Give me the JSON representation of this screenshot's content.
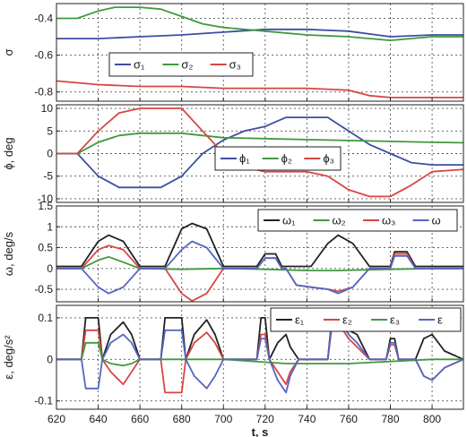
{
  "chart_data": [
    {
      "type": "line",
      "ylabel": "σ",
      "ylim": [
        -0.85,
        -0.32
      ],
      "yticks": [
        "-0.4",
        "-0.6",
        "-0.8"
      ],
      "ytick_values": [
        -0.4,
        -0.6,
        -0.8
      ],
      "legend": {
        "placement": "center-left"
      },
      "series": [
        {
          "name": "σ₁",
          "color": "#3b4fa0",
          "x": [
            620,
            640,
            660,
            680,
            700,
            720,
            740,
            760,
            780,
            800,
            815
          ],
          "y": [
            -0.51,
            -0.51,
            -0.5,
            -0.49,
            -0.475,
            -0.46,
            -0.46,
            -0.47,
            -0.5,
            -0.49,
            -0.49
          ]
        },
        {
          "name": "σ₂",
          "color": "#3e9a3e",
          "x": [
            620,
            630,
            640,
            648,
            660,
            670,
            680,
            690,
            700,
            720,
            740,
            760,
            780,
            800,
            815
          ],
          "y": [
            -0.4,
            -0.4,
            -0.36,
            -0.34,
            -0.34,
            -0.35,
            -0.39,
            -0.43,
            -0.45,
            -0.47,
            -0.49,
            -0.5,
            -0.52,
            -0.5,
            -0.5
          ]
        },
        {
          "name": "σ₃",
          "color": "#d94545",
          "x": [
            620,
            640,
            660,
            680,
            700,
            720,
            740,
            760,
            770,
            780,
            800,
            815
          ],
          "y": [
            -0.74,
            -0.76,
            -0.77,
            -0.77,
            -0.78,
            -0.78,
            -0.78,
            -0.79,
            -0.82,
            -0.83,
            -0.83,
            -0.83
          ]
        }
      ]
    },
    {
      "type": "line",
      "ylabel": "ϕ, deg",
      "ylim": [
        -10.8,
        10.8
      ],
      "yticks": [
        "10",
        "5",
        "0",
        "-5",
        "-10"
      ],
      "ytick_values": [
        10,
        5,
        0,
        -5,
        -10
      ],
      "legend": {
        "placement": "center-right"
      },
      "series": [
        {
          "name": "ϕ₁",
          "color": "#3b4fa0",
          "x": [
            620,
            630,
            640,
            650,
            660,
            670,
            680,
            690,
            700,
            710,
            720,
            730,
            740,
            750,
            760,
            770,
            780,
            790,
            800,
            815
          ],
          "y": [
            0,
            0,
            -5,
            -7.5,
            -7.5,
            -7.5,
            -5,
            0,
            3,
            5,
            6,
            8,
            8,
            8,
            5,
            2,
            0,
            -2,
            -2.5,
            -2.5
          ]
        },
        {
          "name": "ϕ₂",
          "color": "#3e9a3e",
          "x": [
            620,
            630,
            640,
            650,
            660,
            670,
            680,
            690,
            700,
            720,
            740,
            760,
            780,
            800,
            815
          ],
          "y": [
            0,
            0,
            2.5,
            4,
            4.5,
            4.5,
            4.5,
            4,
            3.5,
            3.3,
            3.1,
            2.9,
            2.7,
            2.5,
            2.4
          ]
        },
        {
          "name": "ϕ₃",
          "color": "#d94545",
          "x": [
            620,
            630,
            640,
            650,
            660,
            670,
            680,
            690,
            700,
            710,
            720,
            740,
            750,
            760,
            770,
            780,
            790,
            800,
            815
          ],
          "y": [
            0,
            0,
            5,
            9,
            10,
            10,
            10,
            5,
            0,
            -3,
            -4,
            -4,
            -5,
            -8,
            -9.5,
            -9.5,
            -7,
            -4,
            -3.5
          ]
        }
      ]
    },
    {
      "type": "line",
      "ylabel": "ω, deg/s",
      "ylim": [
        -0.8,
        1.5
      ],
      "yticks": [
        "1.5",
        "1",
        "0.5",
        "0",
        "-0.5"
      ],
      "ytick_values": [
        1.5,
        1,
        0.5,
        0,
        -0.5
      ],
      "legend": {
        "placement": "top-right"
      },
      "series": [
        {
          "name": "ω₁",
          "color": "#222222",
          "x": [
            620,
            632,
            640,
            645,
            652,
            660,
            672,
            680,
            685,
            692,
            700,
            716,
            720,
            725,
            728,
            730,
            735,
            742,
            750,
            755,
            762,
            770,
            780,
            782,
            788,
            792,
            800,
            815
          ],
          "y": [
            0.05,
            0.05,
            0.65,
            0.8,
            0.65,
            0.05,
            0.05,
            0.95,
            1.08,
            0.95,
            0.05,
            0.05,
            0.35,
            0.35,
            0.05,
            0.05,
            0.05,
            0.05,
            0.6,
            0.8,
            0.6,
            0.05,
            0.05,
            0.4,
            0.4,
            0.05,
            0.05,
            0.05
          ]
        },
        {
          "name": "ω₂",
          "color": "#3e9a3e",
          "x": [
            620,
            632,
            640,
            645,
            652,
            660,
            680,
            700,
            720,
            740,
            755,
            770,
            800,
            815
          ],
          "y": [
            0,
            0,
            0.2,
            0.28,
            0.15,
            0,
            -0.02,
            0,
            -0.02,
            -0.05,
            -0.05,
            -0.03,
            0,
            0
          ]
        },
        {
          "name": "ω₃",
          "color": "#d94545",
          "x": [
            620,
            632,
            640,
            645,
            652,
            660,
            672,
            680,
            685,
            692,
            700,
            716,
            720,
            725,
            728,
            730,
            735,
            742,
            750,
            755,
            762,
            770,
            780,
            782,
            788,
            792,
            800,
            815
          ],
          "y": [
            0,
            0,
            0.45,
            0.55,
            0.45,
            0,
            0,
            -0.6,
            -0.78,
            -0.6,
            0,
            0,
            0.25,
            0.25,
            0,
            0,
            -0.4,
            -0.45,
            -0.5,
            -0.55,
            -0.45,
            0,
            0,
            0.35,
            0.35,
            0,
            0,
            0
          ]
        },
        {
          "name": "ω",
          "color": "#5566c0",
          "x": [
            620,
            632,
            640,
            645,
            652,
            660,
            672,
            680,
            685,
            692,
            700,
            716,
            720,
            725,
            728,
            730,
            735,
            742,
            750,
            755,
            762,
            770,
            780,
            782,
            788,
            792,
            800,
            815
          ],
          "y": [
            0,
            0,
            -0.45,
            -0.6,
            -0.45,
            0,
            0,
            0.45,
            0.65,
            0.5,
            0,
            0,
            0.25,
            0.25,
            0,
            0,
            -0.4,
            -0.45,
            -0.5,
            -0.6,
            -0.45,
            0,
            0,
            0.3,
            0.3,
            0,
            0,
            0
          ]
        }
      ]
    },
    {
      "type": "line",
      "ylabel": "ε, deg/s²",
      "xlabel": "t, s",
      "xlim": [
        620,
        815
      ],
      "xticks": [
        "620",
        "640",
        "660",
        "680",
        "700",
        "720",
        "740",
        "760",
        "780",
        "800"
      ],
      "xtick_values": [
        620,
        640,
        660,
        680,
        700,
        720,
        740,
        760,
        780,
        800
      ],
      "ylim": [
        -0.12,
        0.13
      ],
      "yticks": [
        "0.1",
        "0",
        "-0.1"
      ],
      "ytick_values": [
        0.1,
        0,
        -0.1
      ],
      "legend": {
        "placement": "top-right"
      },
      "series": [
        {
          "name": "ε₁",
          "color": "#222222",
          "x": [
            620,
            632,
            634,
            640,
            642,
            646,
            652,
            656,
            660,
            670,
            672,
            680,
            682,
            686,
            692,
            696,
            700,
            716,
            718,
            720,
            722,
            726,
            730,
            732,
            736,
            740,
            750,
            752,
            756,
            760,
            764,
            770,
            778,
            780,
            782,
            784,
            792,
            796,
            800,
            806,
            815
          ],
          "y": [
            0,
            0,
            0.1,
            0.1,
            0,
            0.06,
            0.09,
            0.06,
            0,
            0,
            0.1,
            0.1,
            0,
            0.06,
            0.095,
            0.06,
            0,
            0,
            0.1,
            0.1,
            0,
            0.04,
            0.06,
            0.03,
            0,
            0,
            0,
            0.1,
            0.1,
            0.07,
            0.06,
            0,
            0,
            0.05,
            0.05,
            0,
            0,
            0.05,
            0.06,
            0.02,
            0
          ]
        },
        {
          "name": "ε₂",
          "color": "#d94545",
          "x": [
            620,
            632,
            634,
            640,
            642,
            646,
            652,
            656,
            660,
            670,
            672,
            680,
            682,
            686,
            692,
            696,
            700,
            716,
            718,
            720,
            722,
            726,
            730,
            732,
            736,
            740,
            750,
            752,
            756,
            760,
            764,
            770,
            778,
            780,
            782,
            784,
            792,
            796,
            800,
            806,
            815
          ],
          "y": [
            0,
            0,
            0.07,
            0.07,
            0,
            -0.03,
            -0.06,
            -0.03,
            0,
            0,
            -0.08,
            -0.08,
            0,
            0.04,
            0.065,
            0.04,
            0,
            0,
            0.06,
            0.06,
            0,
            -0.03,
            -0.06,
            -0.03,
            0,
            0,
            0,
            0.08,
            0.08,
            0.05,
            0.03,
            0,
            0,
            0.035,
            0.035,
            0,
            0,
            -0.04,
            -0.05,
            -0.02,
            0
          ]
        },
        {
          "name": "ε₃",
          "color": "#3e9a3e",
          "x": [
            620,
            632,
            634,
            640,
            642,
            646,
            652,
            656,
            660,
            700,
            730,
            760,
            800,
            815
          ],
          "y": [
            0,
            0,
            0.04,
            0.04,
            0,
            -0.01,
            -0.015,
            -0.01,
            0,
            0,
            -0.01,
            -0.01,
            0,
            0
          ]
        },
        {
          "name": "ε",
          "color": "#5566c0",
          "x": [
            620,
            632,
            634,
            640,
            642,
            646,
            652,
            656,
            660,
            670,
            672,
            680,
            682,
            686,
            692,
            696,
            700,
            716,
            718,
            720,
            722,
            726,
            730,
            732,
            736,
            740,
            750,
            752,
            756,
            760,
            764,
            770,
            778,
            780,
            782,
            784,
            792,
            796,
            800,
            806,
            815
          ],
          "y": [
            0,
            0,
            -0.07,
            -0.07,
            0,
            0.04,
            0.06,
            0.04,
            0,
            0,
            0.07,
            0.07,
            0,
            -0.04,
            -0.07,
            -0.04,
            0,
            0,
            0.05,
            0.05,
            0,
            -0.05,
            -0.08,
            -0.04,
            0,
            0,
            0,
            0.09,
            0.09,
            0.06,
            0.04,
            0,
            0,
            0.04,
            0.04,
            0,
            0,
            -0.04,
            -0.05,
            -0.02,
            0
          ]
        }
      ]
    }
  ]
}
